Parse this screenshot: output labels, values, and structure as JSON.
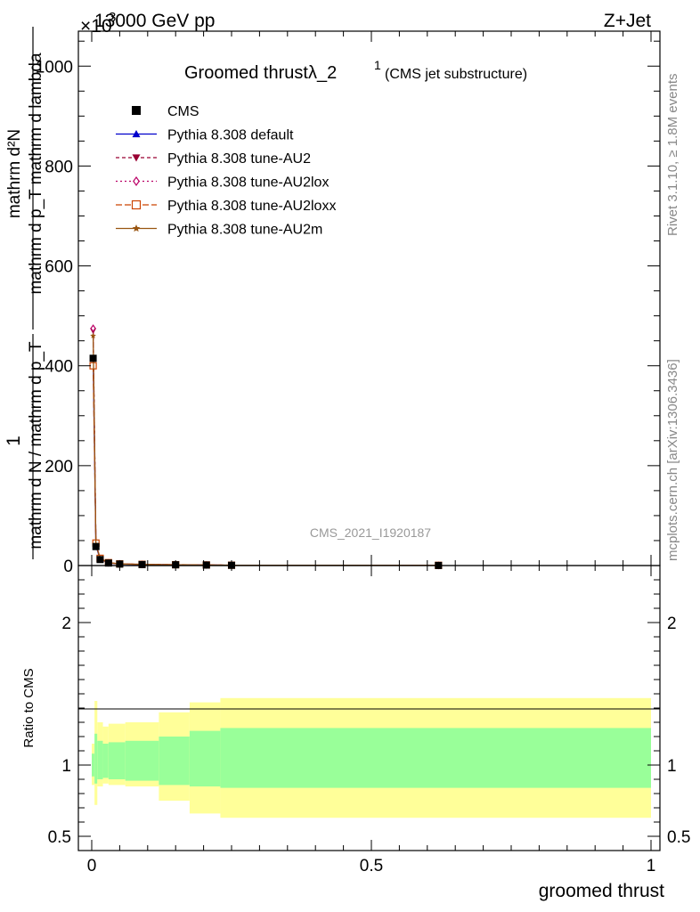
{
  "header": {
    "left": "13000 GeV pp",
    "right": "Z+Jet",
    "exponent": "×10",
    "exponent_power": "3"
  },
  "title": {
    "main": "Groomed thrustλ_2",
    "sup": "1",
    "sub": "(CMS jet substructure)"
  },
  "side_labels": {
    "rivet": "Rivet 3.1.10, ≥ 1.8M events",
    "mcplots": "mcplots.cern.ch [arXiv:1306.3436]"
  },
  "watermark": "CMS_2021_I1920187",
  "ylabel_main": {
    "numerator": "mathrm d²N",
    "numerator_sup": "2",
    "denominator": "mathrm d p_T mathrm d lambda",
    "prefix": "1",
    "prefix_denominator": "mathrm d N / mathrm d p_T"
  },
  "ylabel_ratio": "Ratio to CMS",
  "xlabel": "groomed thrust",
  "legend": [
    {
      "name": "CMS",
      "color": "#000000",
      "marker": "square",
      "dash": ""
    },
    {
      "name": "Pythia 8.308 default",
      "color": "#0000cc",
      "marker": "triangle-up",
      "dash": ""
    },
    {
      "name": "Pythia 8.308 tune-AU2",
      "color": "#990033",
      "marker": "triangle-down",
      "dash": "4,3"
    },
    {
      "name": "Pythia 8.308 tune-AU2lox",
      "color": "#bb0066",
      "marker": "diamond",
      "dash": "2,3"
    },
    {
      "name": "Pythia 8.308 tune-AU2loxx",
      "color": "#cc4400",
      "marker": "open-square",
      "dash": "7,3"
    },
    {
      "name": "Pythia 8.308 tune-AU2m",
      "color": "#995511",
      "marker": "star",
      "dash": ""
    }
  ],
  "chart_data": {
    "type": "line",
    "xlim": [
      0,
      1
    ],
    "ylim_main": [
      0,
      1070000
    ],
    "ylim_ratio": [
      0.4,
      2.4
    ],
    "x_ticks": [
      0,
      0.5,
      1
    ],
    "x_tick_labels": [
      "0",
      "0.5",
      "1"
    ],
    "y_ticks_main": [
      0,
      200000,
      400000,
      600000,
      800000,
      1000000
    ],
    "y_tick_labels_main": [
      "0",
      "200",
      "400",
      "600",
      "800",
      "1000"
    ],
    "y_ticks_ratio": [
      0.5,
      1,
      2
    ],
    "y_tick_labels_ratio": [
      "0.5",
      "1",
      "2"
    ],
    "x": [
      0.0025,
      0.0075,
      0.015,
      0.03,
      0.05,
      0.09,
      0.15,
      0.205,
      0.25,
      0.62
    ],
    "series": [
      {
        "name": "CMS",
        "values": [
          415000,
          38000,
          12000,
          5000,
          3000,
          2000,
          1500,
          1000,
          500,
          200
        ]
      },
      {
        "name": "Pythia 8.308 default",
        "values": [
          415000,
          40000,
          13000,
          5200,
          3100,
          2100,
          1500,
          1000,
          600,
          300
        ]
      },
      {
        "name": "Pythia 8.308 tune-AU2",
        "values": [
          470000,
          42000,
          13500,
          5400,
          3200,
          2200,
          1600,
          1100,
          600,
          300
        ]
      },
      {
        "name": "Pythia 8.308 tune-AU2lox",
        "values": [
          475000,
          44000,
          14000,
          5600,
          3300,
          2300,
          1600,
          1100,
          600,
          300
        ]
      },
      {
        "name": "Pythia 8.308 tune-AU2loxx",
        "values": [
          400000,
          45000,
          14500,
          5800,
          3400,
          2400,
          1700,
          1200,
          700,
          400
        ]
      },
      {
        "name": "Pythia 8.308 tune-AU2m",
        "values": [
          460000,
          43000,
          13800,
          5500,
          3250,
          2250,
          1650,
          1150,
          650,
          350
        ]
      }
    ],
    "ratio_bands": {
      "edges": [
        0,
        0.005,
        0.01,
        0.02,
        0.03,
        0.06,
        0.12,
        0.175,
        0.23,
        1
      ],
      "inner_low": [
        0.92,
        0.87,
        0.9,
        0.91,
        0.9,
        0.89,
        0.86,
        0.85,
        0.84
      ],
      "inner_high": [
        1.08,
        1.22,
        1.17,
        1.15,
        1.16,
        1.17,
        1.2,
        1.24,
        1.26
      ],
      "outer_low": [
        0.86,
        0.72,
        0.85,
        0.87,
        0.86,
        0.85,
        0.75,
        0.66,
        0.63
      ],
      "outer_high": [
        1.15,
        1.45,
        1.3,
        1.27,
        1.29,
        1.3,
        1.37,
        1.44,
        1.47
      ]
    },
    "inner_color": "#99ff99",
    "outer_color": "#ffff99"
  }
}
